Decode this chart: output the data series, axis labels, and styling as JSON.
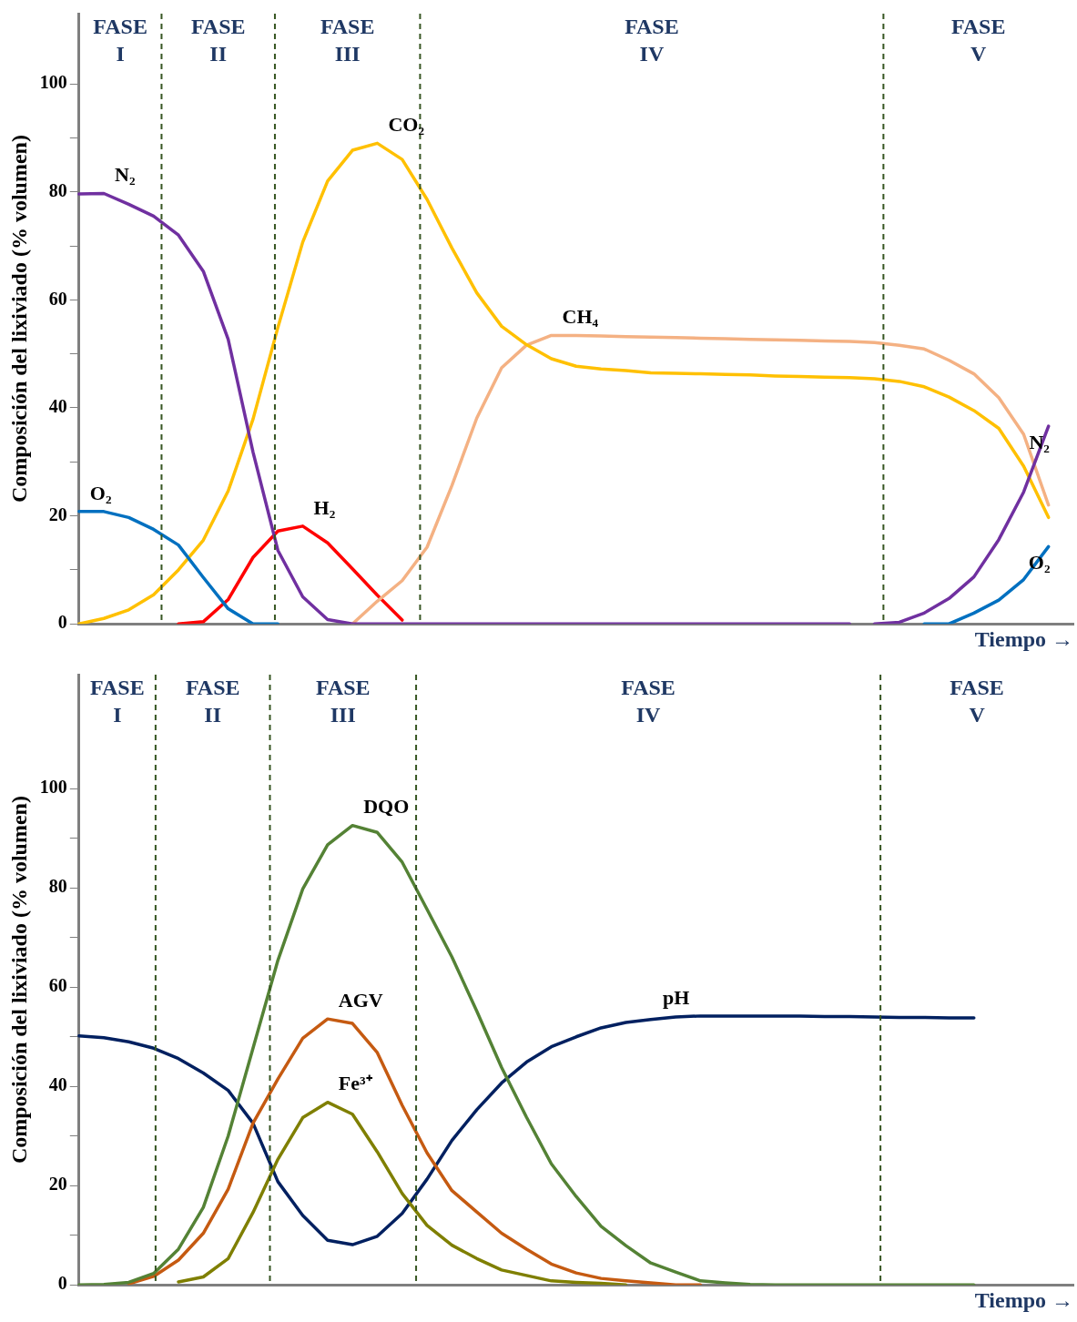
{
  "chart_data": [
    {
      "type": "line",
      "ylabel": "Composición del lixiviado (% volumen)",
      "xlabel": "Tiempo →",
      "categories": [
        null,
        null,
        null,
        null,
        null,
        null,
        null,
        null,
        null,
        null,
        null,
        null,
        null,
        null,
        null,
        null,
        null,
        null,
        null,
        null,
        null,
        null,
        null,
        null,
        null,
        null,
        null,
        null,
        null,
        null,
        null,
        null,
        null,
        null,
        null,
        null,
        null,
        null,
        null,
        null,
        null
      ],
      "ylim": [
        0,
        113
      ],
      "yticks": [
        0,
        {
          "value": 10,
          "label": null
        },
        20,
        {
          "value": 30,
          "label": null
        },
        40,
        {
          "value": 50,
          "label": null
        },
        60,
        {
          "value": 70,
          "label": null
        },
        80,
        {
          "value": 90,
          "label": null
        },
        100
      ],
      "tick_labels": "y",
      "marker": "none",
      "series": [
        {
          "name": "N₂",
          "color": "#7030a0",
          "values": [
            79.6,
            79.7,
            77.7,
            75.5,
            72,
            65.3,
            52.7,
            31.8,
            13.6,
            5,
            0.8,
            0,
            0,
            0,
            0,
            0,
            0,
            0,
            0,
            0,
            0,
            0,
            0,
            0,
            0,
            0,
            0,
            0,
            0,
            0,
            0,
            0,
            null,
            null,
            null,
            null,
            null,
            null,
            null,
            null,
            null
          ]
        },
        {
          "name": "N₂",
          "color": "#7030a0",
          "values": [
            null,
            null,
            null,
            null,
            null,
            null,
            null,
            null,
            null,
            null,
            null,
            null,
            null,
            null,
            null,
            null,
            null,
            null,
            null,
            null,
            null,
            null,
            null,
            null,
            null,
            null,
            null,
            null,
            null,
            null,
            null,
            null,
            0,
            0.3,
            2,
            4.7,
            8.7,
            15.6,
            24.4,
            36.6,
            null
          ]
        },
        {
          "name": "O₂",
          "color": "#0070c0",
          "values": [
            20.8,
            20.8,
            19.7,
            17.5,
            14.6,
            8.6,
            2.8,
            0,
            0,
            null,
            null,
            null,
            null,
            null,
            null,
            null,
            null,
            null,
            null,
            null,
            null,
            null,
            null,
            null,
            null,
            null,
            null,
            null,
            null,
            null,
            null,
            null,
            null,
            null,
            null,
            null,
            null,
            null,
            null,
            null,
            null
          ]
        },
        {
          "name": "O₂",
          "color": "#0070c0",
          "values": [
            null,
            null,
            null,
            null,
            null,
            null,
            null,
            null,
            null,
            null,
            null,
            null,
            null,
            null,
            null,
            null,
            null,
            null,
            null,
            null,
            null,
            null,
            null,
            null,
            null,
            null,
            null,
            null,
            null,
            null,
            null,
            null,
            null,
            null,
            0,
            0,
            2,
            4.4,
            8.2,
            14.3,
            null
          ]
        },
        {
          "name": "CO₂",
          "color": "#ffc000",
          "values": [
            0,
            1,
            2.6,
            5.4,
            10,
            15.5,
            24.6,
            37.9,
            54.9,
            70.7,
            82,
            87.7,
            89,
            86,
            78.6,
            69.6,
            61.3,
            55.1,
            51.7,
            49.1,
            47.7,
            47.2,
            46.9,
            46.5,
            46.4,
            46.3,
            46.2,
            46.1,
            45.9,
            45.8,
            45.7,
            45.6,
            45.4,
            44.9,
            43.9,
            42,
            39.5,
            36.2,
            29.2,
            19.7,
            null
          ]
        },
        {
          "name": "CH₄",
          "color": "#f4b183",
          "values": [
            null,
            null,
            null,
            null,
            null,
            null,
            null,
            null,
            null,
            null,
            null,
            0,
            4.2,
            8,
            14.2,
            25.6,
            38.1,
            47.4,
            51.6,
            53.4,
            53.4,
            53.3,
            53.2,
            53.1,
            53,
            52.9,
            52.8,
            52.7,
            52.6,
            52.5,
            52.4,
            52.3,
            52.1,
            51.6,
            50.9,
            48.8,
            46.3,
            41.9,
            35.1,
            22,
            null
          ]
        },
        {
          "name": "H₂",
          "color": "#ff0000",
          "values": [
            null,
            null,
            null,
            null,
            0,
            0.4,
            4.5,
            12.3,
            17.2,
            18.1,
            15,
            10.2,
            5.3,
            0.7,
            null,
            null,
            null,
            null,
            null,
            null,
            null,
            null,
            null,
            null,
            null,
            null,
            null,
            null,
            null,
            null,
            null,
            null,
            null,
            null,
            null,
            null,
            null,
            null,
            null,
            null,
            null
          ]
        }
      ],
      "annotations": [
        "FASE I",
        "FASE II",
        "FASE III",
        "FASE IV",
        "FASE V"
      ]
    },
    {
      "type": "line",
      "ylabel": "Composición del lixiviado (% volumen)",
      "xlabel": "Tiempo →",
      "categories": [
        null,
        null,
        null,
        null,
        null,
        null,
        null,
        null,
        null,
        null,
        null,
        null,
        null,
        null,
        null,
        null,
        null,
        null,
        null,
        null,
        null,
        null,
        null,
        null,
        null,
        null,
        null,
        null,
        null,
        null,
        null,
        null,
        null,
        null,
        null,
        null,
        null,
        null,
        null,
        null,
        null
      ],
      "ylim": [
        0,
        123
      ],
      "yticks": [
        0,
        {
          "value": 10,
          "label": null
        },
        20,
        {
          "value": 30,
          "label": null
        },
        40,
        {
          "value": 50,
          "label": null
        },
        60,
        {
          "value": 70,
          "label": null
        },
        80,
        {
          "value": 90,
          "label": null
        },
        100
      ],
      "tick_labels": "y",
      "marker": "none",
      "series": [
        {
          "name": "DQO",
          "color": "#548235",
          "values": [
            0,
            0.1,
            0.5,
            2.3,
            7.2,
            15.6,
            30,
            47.7,
            65.4,
            79.8,
            88.7,
            92.6,
            91.2,
            85.2,
            75.7,
            66.1,
            55.2,
            43.8,
            33.8,
            24.4,
            17.8,
            11.8,
            7.9,
            4.4,
            2.6,
            0.8,
            0.4,
            0.1,
            0,
            0,
            0,
            0,
            0,
            0,
            0,
            0,
            0,
            null,
            null,
            null,
            null
          ]
        },
        {
          "name": "AGV",
          "color": "#c55a11",
          "values": [
            null,
            null,
            0.2,
            1.7,
            5,
            10.4,
            19.3,
            32.6,
            41.5,
            49.7,
            53.6,
            52.7,
            46.8,
            36.2,
            26.6,
            19,
            14.7,
            10.4,
            7.2,
            4.2,
            2.4,
            1.3,
            0.8,
            0.4,
            0,
            0,
            null,
            null,
            null,
            null,
            null,
            null,
            null,
            null,
            null,
            null,
            null,
            null,
            null,
            null,
            null
          ]
        },
        {
          "name": "Fe³⁺",
          "color": "#7f7f00",
          "values": [
            null,
            null,
            null,
            null,
            0.6,
            1.6,
            5.3,
            14.6,
            25.3,
            33.7,
            36.8,
            34.4,
            26.8,
            18.4,
            12,
            8,
            5.3,
            3,
            1.9,
            0.8,
            0.5,
            0.3,
            0,
            null,
            null,
            null,
            null,
            null,
            null,
            null,
            null,
            null,
            null,
            null,
            null,
            null,
            null,
            null,
            null,
            null,
            null
          ]
        },
        {
          "name": "pH",
          "color": "#002060",
          "values": [
            50.2,
            49.8,
            49,
            47.7,
            45.6,
            42.7,
            39.2,
            32.6,
            20.8,
            14,
            9,
            8.1,
            9.8,
            14.4,
            21.3,
            29.1,
            35.3,
            40.7,
            44.9,
            48,
            50,
            51.8,
            52.9,
            53.5,
            54,
            54.2,
            54.2,
            54.2,
            54.2,
            54.2,
            54.1,
            54.1,
            54,
            53.9,
            53.9,
            53.8,
            53.8,
            null,
            null,
            null,
            null
          ]
        }
      ],
      "annotations": [
        "FASE I",
        "FASE II",
        "FASE III",
        "FASE IV",
        "FASE V"
      ]
    }
  ]
}
